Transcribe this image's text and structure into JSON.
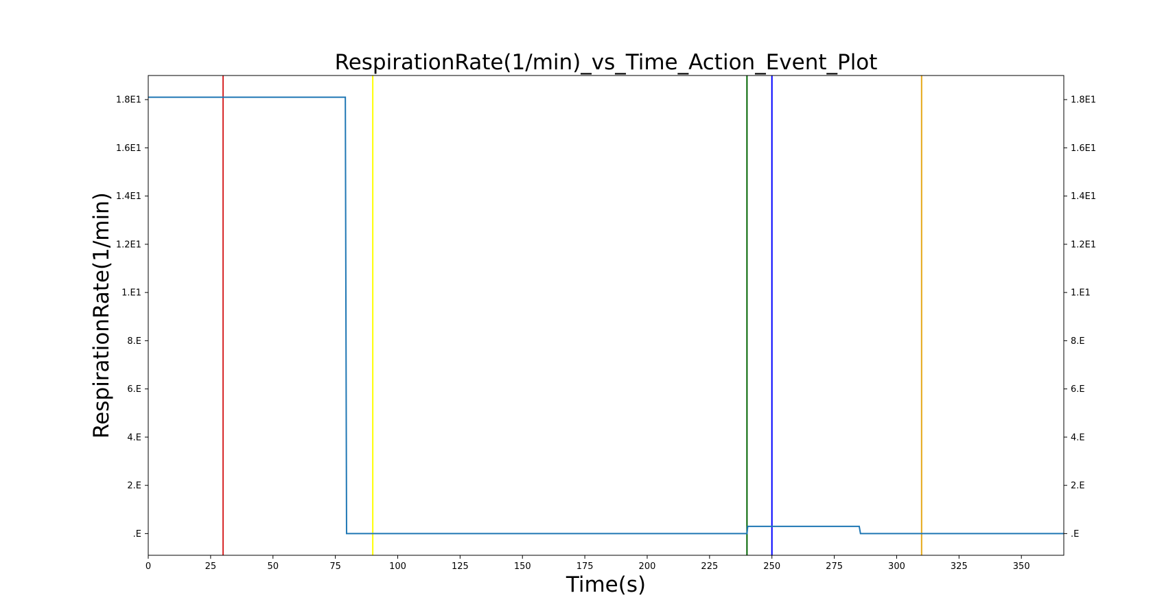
{
  "chart_data": {
    "type": "line",
    "title": "RespirationRate(1/min)_vs_Time_Action_Event_Plot",
    "xlabel": "Time(s)",
    "ylabel": "RespirationRate(1/min)",
    "xlim": [
      0,
      367
    ],
    "ylim": [
      -0.9,
      19.0
    ],
    "x_ticks": [
      0,
      25,
      50,
      75,
      100,
      125,
      150,
      175,
      200,
      225,
      250,
      275,
      300,
      325,
      350
    ],
    "x_tick_labels": [
      "0",
      "25",
      "50",
      "75",
      "100",
      "125",
      "150",
      "175",
      "200",
      "225",
      "250",
      "275",
      "300",
      "325",
      "350"
    ],
    "y_ticks": [
      0,
      2,
      4,
      6,
      8,
      10,
      12,
      14,
      16,
      18
    ],
    "y_tick_labels": [
      ".E",
      "2.E",
      "4.E",
      "6.E",
      "8.E",
      "1.E1",
      "1.2E1",
      "1.4E1",
      "1.6E1",
      "1.8E1"
    ],
    "right_y_axis_ticks": true,
    "grid": false,
    "series": [
      {
        "color": "#1f77b4",
        "x": [
          0,
          79,
          79.5,
          240,
          240.3,
          285,
          285.5,
          367
        ],
        "y": [
          18.1,
          18.1,
          0,
          0,
          0.3,
          0.3,
          0,
          0
        ]
      }
    ],
    "event_lines": [
      {
        "x": 30,
        "color": "#d62728"
      },
      {
        "x": 90,
        "color": "#ffff00"
      },
      {
        "x": 240,
        "color": "#006400"
      },
      {
        "x": 250,
        "color": "#0000ff"
      },
      {
        "x": 310,
        "color": "#e6a817"
      }
    ]
  }
}
